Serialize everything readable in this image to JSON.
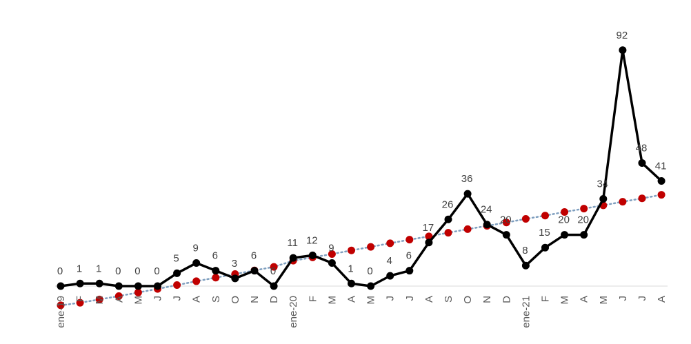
{
  "chart_data": {
    "type": "line",
    "categories": [
      "ene-19",
      "F",
      "M",
      "A",
      "M",
      "J",
      "J",
      "A",
      "S",
      "O",
      "N",
      "D",
      "ene-20",
      "F",
      "M",
      "A",
      "M",
      "J",
      "J",
      "A",
      "S",
      "O",
      "N",
      "D",
      "ene-21",
      "F",
      "M",
      "A",
      "M",
      "J",
      "J",
      "A"
    ],
    "series": [
      {
        "values": [
          0,
          1,
          1,
          0,
          0,
          0,
          5,
          9,
          6,
          3,
          6,
          0,
          11,
          12,
          9,
          1,
          0,
          4,
          6,
          17,
          26,
          36,
          24,
          20,
          8,
          15,
          20,
          20,
          34,
          92,
          48,
          41
        ],
        "labels": [
          "0",
          "1",
          "1",
          "0",
          "0",
          "0",
          "5",
          "9",
          "6",
          "3",
          "6",
          "0",
          "11",
          "12",
          "9",
          "1",
          "0",
          "4",
          "6",
          "17",
          "26",
          "36",
          "24",
          "20",
          "8",
          "15",
          "20",
          "20",
          "34",
          "92",
          "48",
          "41"
        ],
        "color": "#000000",
        "style": "solid-with-markers"
      },
      {
        "values": [
          -7.5,
          -6.5,
          -5.2,
          -3.9,
          -2.5,
          -1.1,
          0.4,
          1.9,
          3.3,
          4.7,
          6.1,
          7.5,
          9.9,
          11.2,
          12.5,
          13.9,
          15.3,
          16.7,
          18.1,
          19.4,
          20.8,
          22.2,
          23.5,
          24.8,
          26.2,
          27.5,
          28.9,
          30.2,
          31.5,
          32.9,
          34.2,
          35.6
        ],
        "color": "#C00000",
        "line_color": "#7F9FBF",
        "style": "dotted-trendline"
      }
    ],
    "ylim": [
      -8,
      110
    ],
    "grid": false,
    "legend": "none"
  }
}
